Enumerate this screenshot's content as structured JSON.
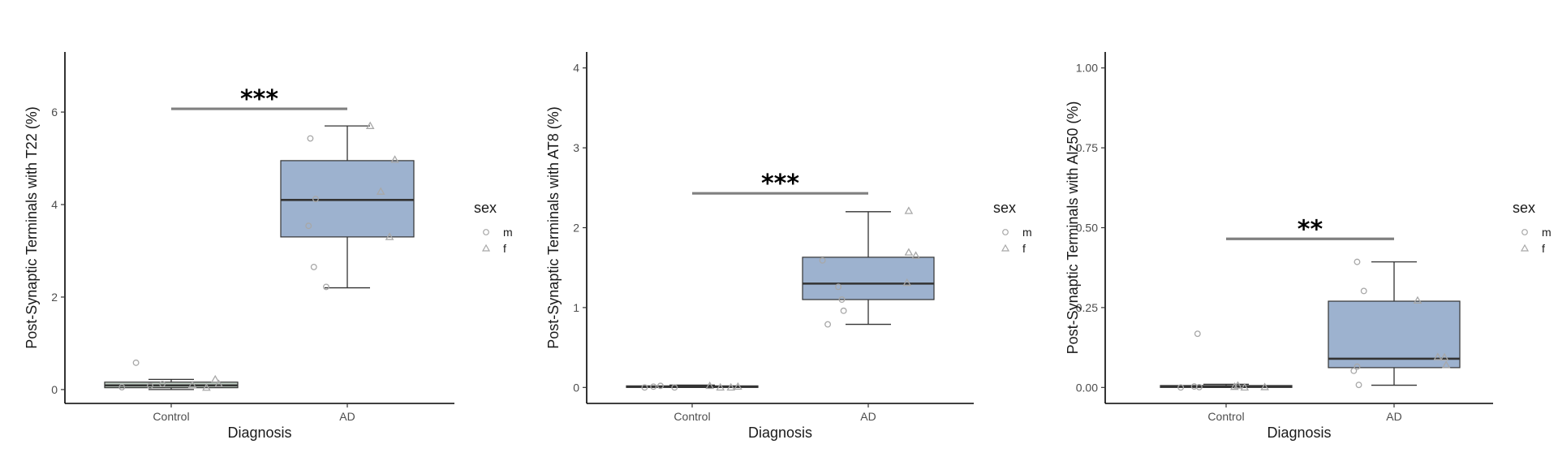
{
  "chart_data": [
    {
      "type": "box",
      "xlabel": "Diagnosis",
      "ylabel": "Post-Synaptic Terminals with T22 (%)",
      "categories": [
        "Control",
        "AD"
      ],
      "ylim": [
        -0.3,
        7.3
      ],
      "yticks": [
        0,
        2,
        4,
        6
      ],
      "ytick_labels": [
        "0",
        "2",
        "4",
        "6"
      ],
      "boxes": [
        {
          "category": "Control",
          "whisker_low": 0.0,
          "q1": 0.04,
          "median": 0.09,
          "q3": 0.16,
          "whisker_high": 0.22,
          "fill": "#c3d0c6"
        },
        {
          "category": "AD",
          "whisker_low": 2.2,
          "q1": 3.3,
          "median": 4.1,
          "q3": 4.95,
          "whisker_high": 5.7,
          "fill": "#9db2cf"
        }
      ],
      "points": [
        {
          "category": "Control",
          "sex": "m",
          "jitter": -0.2,
          "y": 0.58
        },
        {
          "category": "Control",
          "sex": "m",
          "jitter": -0.28,
          "y": 0.05
        },
        {
          "category": "Control",
          "sex": "m",
          "jitter": -0.12,
          "y": 0.08
        },
        {
          "category": "Control",
          "sex": "m",
          "jitter": -0.05,
          "y": 0.12
        },
        {
          "category": "Control",
          "sex": "f",
          "jitter": 0.12,
          "y": 0.1
        },
        {
          "category": "Control",
          "sex": "f",
          "jitter": 0.2,
          "y": 0.04
        },
        {
          "category": "Control",
          "sex": "f",
          "jitter": 0.25,
          "y": 0.22
        },
        {
          "category": "Control",
          "sex": "f",
          "jitter": 0.27,
          "y": 0.12
        },
        {
          "category": "AD",
          "sex": "m",
          "jitter": -0.21,
          "y": 5.43
        },
        {
          "category": "AD",
          "sex": "m",
          "jitter": -0.18,
          "y": 4.12
        },
        {
          "category": "AD",
          "sex": "m",
          "jitter": -0.22,
          "y": 3.54
        },
        {
          "category": "AD",
          "sex": "m",
          "jitter": -0.19,
          "y": 2.65
        },
        {
          "category": "AD",
          "sex": "m",
          "jitter": -0.12,
          "y": 2.22
        },
        {
          "category": "AD",
          "sex": "f",
          "jitter": 0.13,
          "y": 5.7
        },
        {
          "category": "AD",
          "sex": "f",
          "jitter": 0.27,
          "y": 4.97
        },
        {
          "category": "AD",
          "sex": "f",
          "jitter": 0.19,
          "y": 4.28
        },
        {
          "category": "AD",
          "sex": "f",
          "jitter": 0.24,
          "y": 3.3
        }
      ],
      "significance": {
        "label": "***",
        "from": "Control",
        "to": "AD",
        "y": 6.07
      },
      "legend": {
        "title": "sex",
        "entries": [
          {
            "label": "m",
            "shape": "circle"
          },
          {
            "label": "f",
            "shape": "triangle"
          }
        ]
      }
    },
    {
      "type": "box",
      "xlabel": "Diagnosis",
      "ylabel": "Post-Synaptic Terminals with AT8 (%)",
      "categories": [
        "Control",
        "AD"
      ],
      "ylim": [
        -0.2,
        4.2
      ],
      "yticks": [
        0,
        1,
        2,
        3,
        4
      ],
      "ytick_labels": [
        "0",
        "1",
        "2",
        "3",
        "4"
      ],
      "boxes": [
        {
          "category": "Control",
          "whisker_low": 0.0,
          "q1": 0.0,
          "median": 0.01,
          "q3": 0.02,
          "whisker_high": 0.03,
          "fill": "#c3d0c6"
        },
        {
          "category": "AD",
          "whisker_low": 0.79,
          "q1": 1.1,
          "median": 1.3,
          "q3": 1.63,
          "whisker_high": 2.2,
          "fill": "#9db2cf"
        }
      ],
      "points": [
        {
          "category": "Control",
          "sex": "m",
          "jitter": -0.27,
          "y": 0.0
        },
        {
          "category": "Control",
          "sex": "m",
          "jitter": -0.22,
          "y": 0.01
        },
        {
          "category": "Control",
          "sex": "m",
          "jitter": -0.18,
          "y": 0.02
        },
        {
          "category": "Control",
          "sex": "m",
          "jitter": -0.1,
          "y": 0.0
        },
        {
          "category": "Control",
          "sex": "f",
          "jitter": 0.1,
          "y": 0.02
        },
        {
          "category": "Control",
          "sex": "f",
          "jitter": 0.16,
          "y": 0.0
        },
        {
          "category": "Control",
          "sex": "f",
          "jitter": 0.22,
          "y": 0.0
        },
        {
          "category": "Control",
          "sex": "f",
          "jitter": 0.26,
          "y": 0.01
        },
        {
          "category": "AD",
          "sex": "m",
          "jitter": -0.26,
          "y": 1.59
        },
        {
          "category": "AD",
          "sex": "m",
          "jitter": -0.17,
          "y": 1.26
        },
        {
          "category": "AD",
          "sex": "m",
          "jitter": -0.15,
          "y": 1.1
        },
        {
          "category": "AD",
          "sex": "m",
          "jitter": -0.14,
          "y": 0.96
        },
        {
          "category": "AD",
          "sex": "m",
          "jitter": -0.23,
          "y": 0.79
        },
        {
          "category": "AD",
          "sex": "f",
          "jitter": 0.23,
          "y": 2.21
        },
        {
          "category": "AD",
          "sex": "f",
          "jitter": 0.23,
          "y": 1.69
        },
        {
          "category": "AD",
          "sex": "f",
          "jitter": 0.27,
          "y": 1.65
        },
        {
          "category": "AD",
          "sex": "f",
          "jitter": 0.22,
          "y": 1.31
        }
      ],
      "significance": {
        "label": "***",
        "from": "Control",
        "to": "AD",
        "y": 2.43
      },
      "legend": {
        "title": "sex",
        "entries": [
          {
            "label": "m",
            "shape": "circle"
          },
          {
            "label": "f",
            "shape": "triangle"
          }
        ]
      }
    },
    {
      "type": "box",
      "xlabel": "Diagnosis",
      "ylabel": "Post-Synaptic Terminals with Alz50 (%)",
      "categories": [
        "Control",
        "AD"
      ],
      "ylim": [
        -0.05,
        1.05
      ],
      "yticks": [
        0,
        0.25,
        0.5,
        0.75,
        1.0
      ],
      "ytick_labels": [
        "0.00",
        "0.25",
        "0.50",
        "0.75",
        "1.00"
      ],
      "boxes": [
        {
          "category": "Control",
          "whisker_low": 0.0,
          "q1": 0.0,
          "median": 0.003,
          "q3": 0.006,
          "whisker_high": 0.01,
          "fill": "#c3d0c6"
        },
        {
          "category": "AD",
          "whisker_low": 0.007,
          "q1": 0.062,
          "median": 0.09,
          "q3": 0.27,
          "whisker_high": 0.393,
          "fill": "#9db2cf"
        }
      ],
      "points": [
        {
          "category": "Control",
          "sex": "m",
          "jitter": -0.17,
          "y": 0.168
        },
        {
          "category": "Control",
          "sex": "m",
          "jitter": -0.27,
          "y": 0.0
        },
        {
          "category": "Control",
          "sex": "m",
          "jitter": -0.19,
          "y": 0.003
        },
        {
          "category": "Control",
          "sex": "m",
          "jitter": -0.16,
          "y": 0.001
        },
        {
          "category": "Control",
          "sex": "f",
          "jitter": 0.05,
          "y": 0.002
        },
        {
          "category": "Control",
          "sex": "f",
          "jitter": 0.07,
          "y": 0.006
        },
        {
          "category": "Control",
          "sex": "f",
          "jitter": 0.11,
          "y": 0.0
        },
        {
          "category": "Control",
          "sex": "f",
          "jitter": 0.23,
          "y": 0.001
        },
        {
          "category": "AD",
          "sex": "m",
          "jitter": -0.22,
          "y": 0.393
        },
        {
          "category": "AD",
          "sex": "m",
          "jitter": -0.18,
          "y": 0.302
        },
        {
          "category": "AD",
          "sex": "m",
          "jitter": -0.22,
          "y": 0.065
        },
        {
          "category": "AD",
          "sex": "m",
          "jitter": -0.24,
          "y": 0.052
        },
        {
          "category": "AD",
          "sex": "m",
          "jitter": -0.21,
          "y": 0.008
        },
        {
          "category": "AD",
          "sex": "f",
          "jitter": 0.14,
          "y": 0.272
        },
        {
          "category": "AD",
          "sex": "f",
          "jitter": 0.26,
          "y": 0.095
        },
        {
          "category": "AD",
          "sex": "f",
          "jitter": 0.3,
          "y": 0.094
        },
        {
          "category": "AD",
          "sex": "f",
          "jitter": 0.31,
          "y": 0.07
        }
      ],
      "significance": {
        "label": "**",
        "from": "Control",
        "to": "AD",
        "y": 0.465
      },
      "legend": {
        "title": "sex",
        "entries": [
          {
            "label": "m",
            "shape": "circle"
          },
          {
            "label": "f",
            "shape": "triangle"
          }
        ]
      }
    }
  ],
  "colors": {
    "control_box": "#c3d0c6",
    "ad_box": "#9db2cf",
    "points": "#a8a8a8",
    "significance_bar": "#808080",
    "axis": "#000000"
  }
}
